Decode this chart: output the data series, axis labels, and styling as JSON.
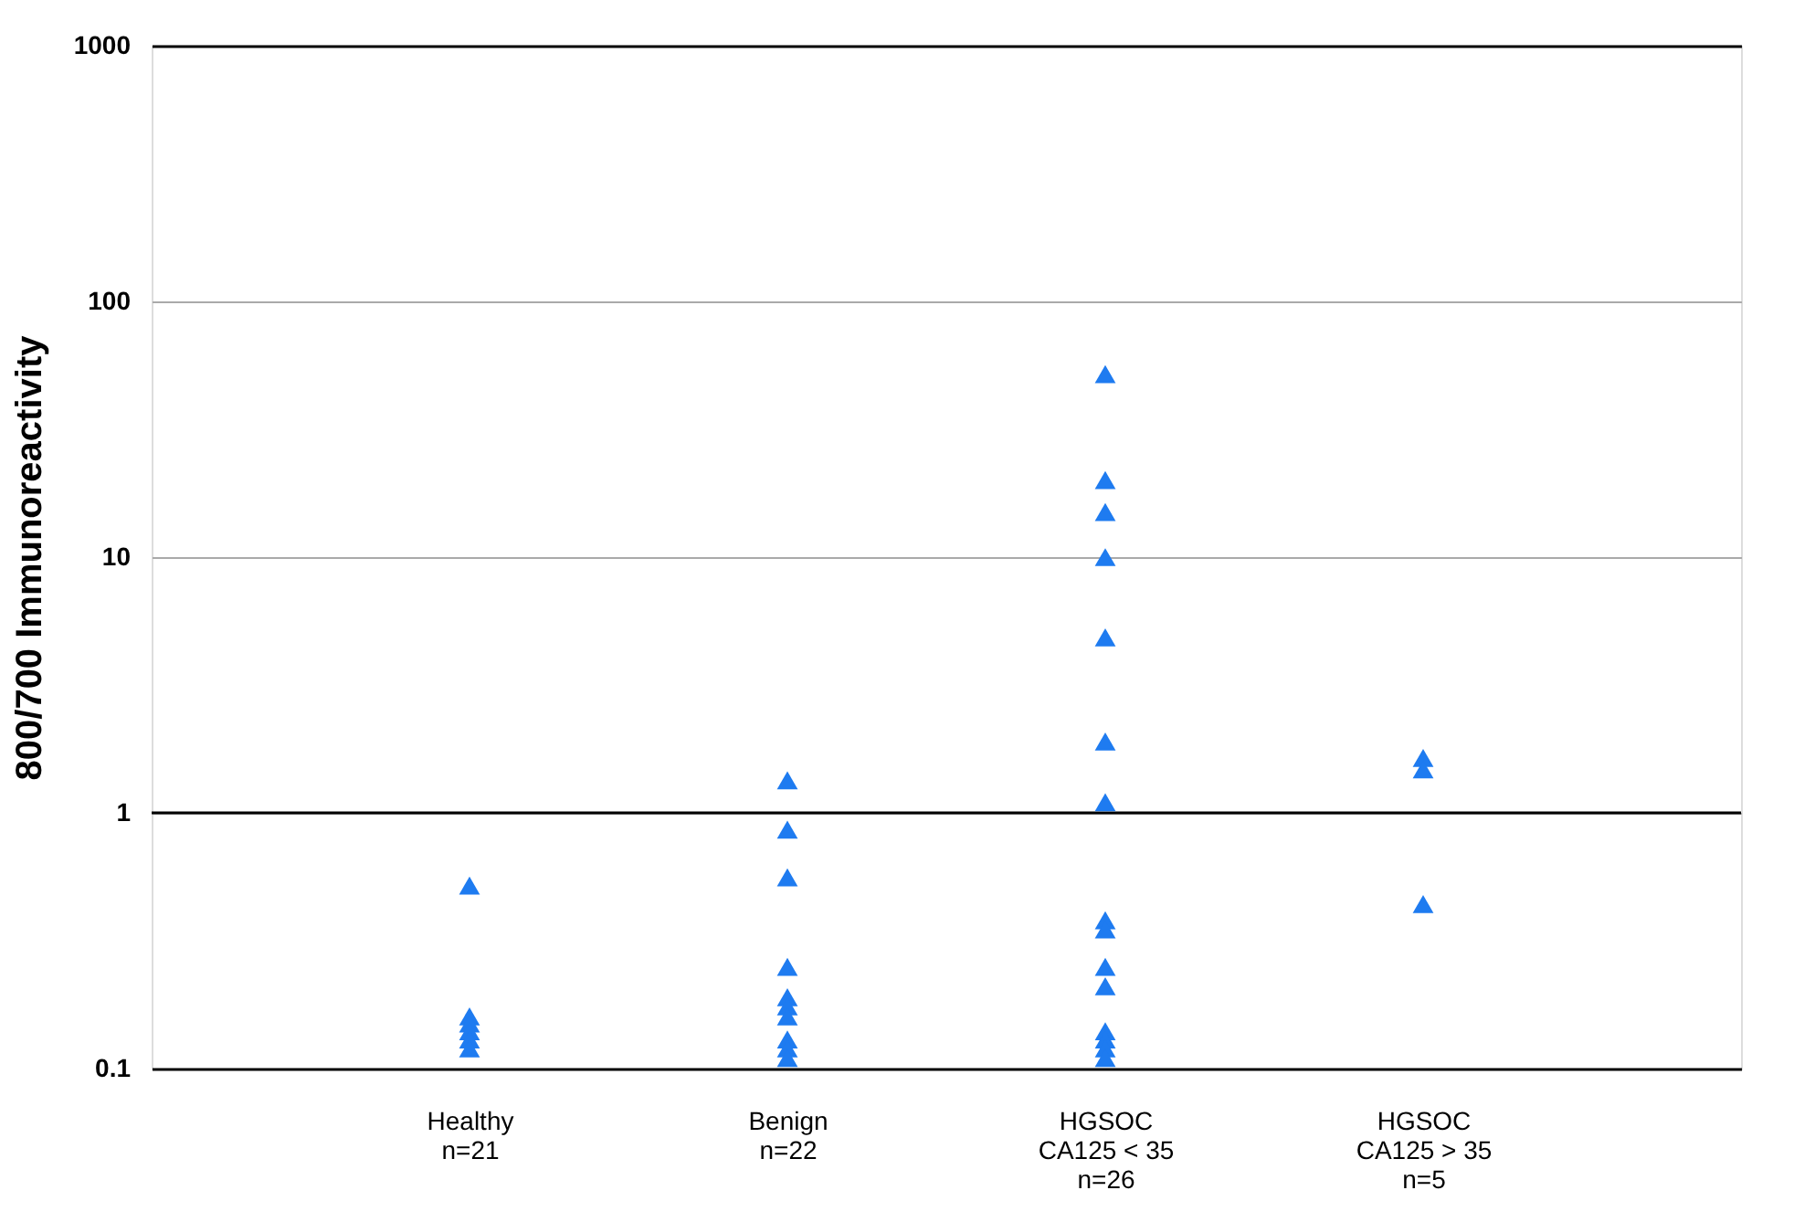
{
  "chart_data": {
    "type": "scatter",
    "ylabel": "800/700 Immunoreactivity",
    "log": "y",
    "ylim": [
      0.1,
      1000
    ],
    "yticks": [
      0.1,
      1,
      10,
      100,
      1000
    ],
    "grid": "y",
    "marker": "triangle",
    "categories": [
      "Healthy\nn=21",
      "Benign\nn=22",
      "HGSOC\nCA125 < 35\nn=26",
      "HGSOC\nCA125 > 35\nn=5"
    ],
    "ref_lines": [
      {
        "axis": "y",
        "value": 1,
        "color": "#000000"
      }
    ],
    "series": [
      {
        "color": "#1e7bf0",
        "x": [
          "Healthy\nn=21",
          "Healthy\nn=21",
          "Healthy\nn=21",
          "Healthy\nn=21",
          "Healthy\nn=21",
          "Healthy\nn=21",
          "Benign\nn=22",
          "Benign\nn=22",
          "Benign\nn=22",
          "Benign\nn=22",
          "Benign\nn=22",
          "Benign\nn=22",
          "Benign\nn=22",
          "Benign\nn=22",
          "Benign\nn=22",
          "Benign\nn=22",
          "HGSOC\nCA125 < 35\nn=26",
          "HGSOC\nCA125 < 35\nn=26",
          "HGSOC\nCA125 < 35\nn=26",
          "HGSOC\nCA125 < 35\nn=26",
          "HGSOC\nCA125 < 35\nn=26",
          "HGSOC\nCA125 < 35\nn=26",
          "HGSOC\nCA125 < 35\nn=26",
          "HGSOC\nCA125 < 35\nn=26",
          "HGSOC\nCA125 < 35\nn=26",
          "HGSOC\nCA125 < 35\nn=26",
          "HGSOC\nCA125 < 35\nn=26",
          "HGSOC\nCA125 < 35\nn=26",
          "HGSOC\nCA125 < 35\nn=26",
          "HGSOC\nCA125 < 35\nn=26",
          "HGSOC\nCA125 < 35\nn=26",
          "HGSOC\nCA125 > 35\nn=5",
          "HGSOC\nCA125 > 35\nn=5",
          "HGSOC\nCA125 > 35\nn=5"
        ],
        "values": [
          0.52,
          0.16,
          0.15,
          0.14,
          0.13,
          0.12,
          1.34,
          0.86,
          0.56,
          0.25,
          0.19,
          0.175,
          0.16,
          0.13,
          0.12,
          0.11,
          52,
          20,
          15,
          10,
          4.85,
          1.9,
          1.1,
          0.38,
          0.35,
          0.25,
          0.21,
          0.14,
          0.13,
          0.12,
          0.11,
          1.64,
          1.48,
          0.44
        ]
      }
    ]
  }
}
